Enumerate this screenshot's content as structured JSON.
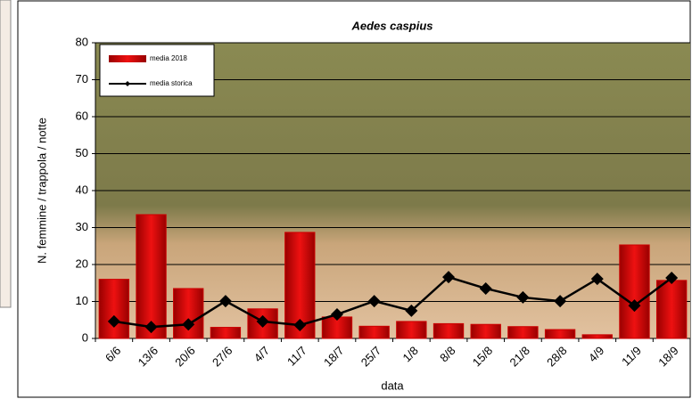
{
  "chart_data": {
    "type": "bar-line",
    "title": "Aedes caspius",
    "y_label": "N. femmine / trappola / notte",
    "x_label": "data",
    "categories": [
      "6/6",
      "13/6",
      "20/6",
      "27/6",
      "4/7",
      "11/7",
      "18/7",
      "25/7",
      "1/8",
      "8/8",
      "15/8",
      "21/8",
      "28/8",
      "4/9",
      "11/9",
      "18/9"
    ],
    "series": [
      {
        "name": "media 2018",
        "type": "bar",
        "color": "#cc0000",
        "values": [
          16,
          33.5,
          13.5,
          3,
          8,
          28.7,
          5.8,
          3.3,
          4.6,
          4,
          3.8,
          3.2,
          2.4,
          1,
          25.3,
          15.7
        ]
      },
      {
        "name": "media storica",
        "type": "line",
        "color": "#000000",
        "values": [
          4.6,
          3.1,
          3.8,
          10.1,
          4.6,
          3.6,
          6.5,
          10.1,
          7.5,
          16.6,
          13.5,
          11.1,
          10.1,
          16.1,
          8.9,
          16.4
        ]
      }
    ],
    "ylim": [
      0,
      80
    ],
    "yticks": [
      0,
      10,
      20,
      30,
      40,
      50,
      60,
      70,
      80
    ],
    "grid": true
  }
}
